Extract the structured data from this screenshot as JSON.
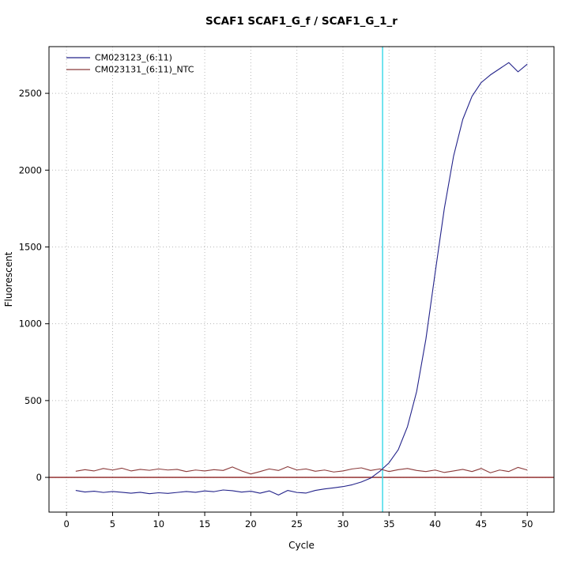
{
  "page": {
    "background": "#ffffff"
  },
  "chart_data": {
    "type": "line",
    "title": "SCAF1  SCAF1_G_f / SCAF1_G_1_r",
    "xlabel": "Cycle",
    "ylabel": "Fluorescent",
    "xlim": [
      -1.9,
      52.9
    ],
    "ylim": [
      -226,
      2804
    ],
    "x_ticks": [
      0,
      5,
      10,
      15,
      20,
      25,
      30,
      35,
      40,
      45,
      50
    ],
    "y_ticks": [
      0,
      500,
      1000,
      1500,
      2000,
      2500
    ],
    "grid": true,
    "grid_color": "#b8b8b8",
    "frame_color": "#000000",
    "threshold_line": {
      "y": 0,
      "color": "#8b2020"
    },
    "ct_line": {
      "x": 34.3,
      "color": "#35d8e8"
    },
    "legend": {
      "position": "top-left"
    },
    "series": [
      {
        "name": "CM023123_(6:11)",
        "color": "#23238a",
        "x": [
          1,
          2,
          3,
          4,
          5,
          6,
          7,
          8,
          9,
          10,
          11,
          12,
          13,
          14,
          15,
          16,
          17,
          18,
          19,
          20,
          21,
          22,
          23,
          24,
          25,
          26,
          27,
          28,
          29,
          30,
          31,
          32,
          33,
          34,
          35,
          36,
          37,
          38,
          39,
          40,
          41,
          42,
          43,
          44,
          45,
          46,
          47,
          48,
          49,
          50
        ],
        "values": [
          -85,
          -95,
          -90,
          -98,
          -92,
          -97,
          -103,
          -97,
          -106,
          -100,
          -104,
          -98,
          -92,
          -97,
          -88,
          -93,
          -82,
          -87,
          -96,
          -90,
          -103,
          -88,
          -115,
          -85,
          -98,
          -102,
          -85,
          -75,
          -68,
          -60,
          -48,
          -30,
          -5,
          40,
          95,
          180,
          330,
          560,
          900,
          1330,
          1750,
          2090,
          2330,
          2480,
          2570,
          2620,
          2660,
          2700,
          2640,
          2690
        ]
      },
      {
        "name": "CM023131_(6:11)_NTC",
        "color": "#8b3a3a",
        "x": [
          1,
          2,
          3,
          4,
          5,
          6,
          7,
          8,
          9,
          10,
          11,
          12,
          13,
          14,
          15,
          16,
          17,
          18,
          19,
          20,
          21,
          22,
          23,
          24,
          25,
          26,
          27,
          28,
          29,
          30,
          31,
          32,
          33,
          34,
          35,
          36,
          37,
          38,
          39,
          40,
          41,
          42,
          43,
          44,
          45,
          46,
          47,
          48,
          49,
          50
        ],
        "values": [
          40,
          50,
          42,
          58,
          48,
          60,
          42,
          52,
          46,
          55,
          48,
          52,
          38,
          48,
          42,
          50,
          45,
          68,
          42,
          22,
          38,
          55,
          45,
          70,
          48,
          55,
          40,
          48,
          35,
          42,
          55,
          62,
          45,
          55,
          38,
          50,
          58,
          45,
          38,
          48,
          32,
          42,
          52,
          38,
          58,
          30,
          48,
          38,
          65,
          48
        ]
      }
    ]
  }
}
